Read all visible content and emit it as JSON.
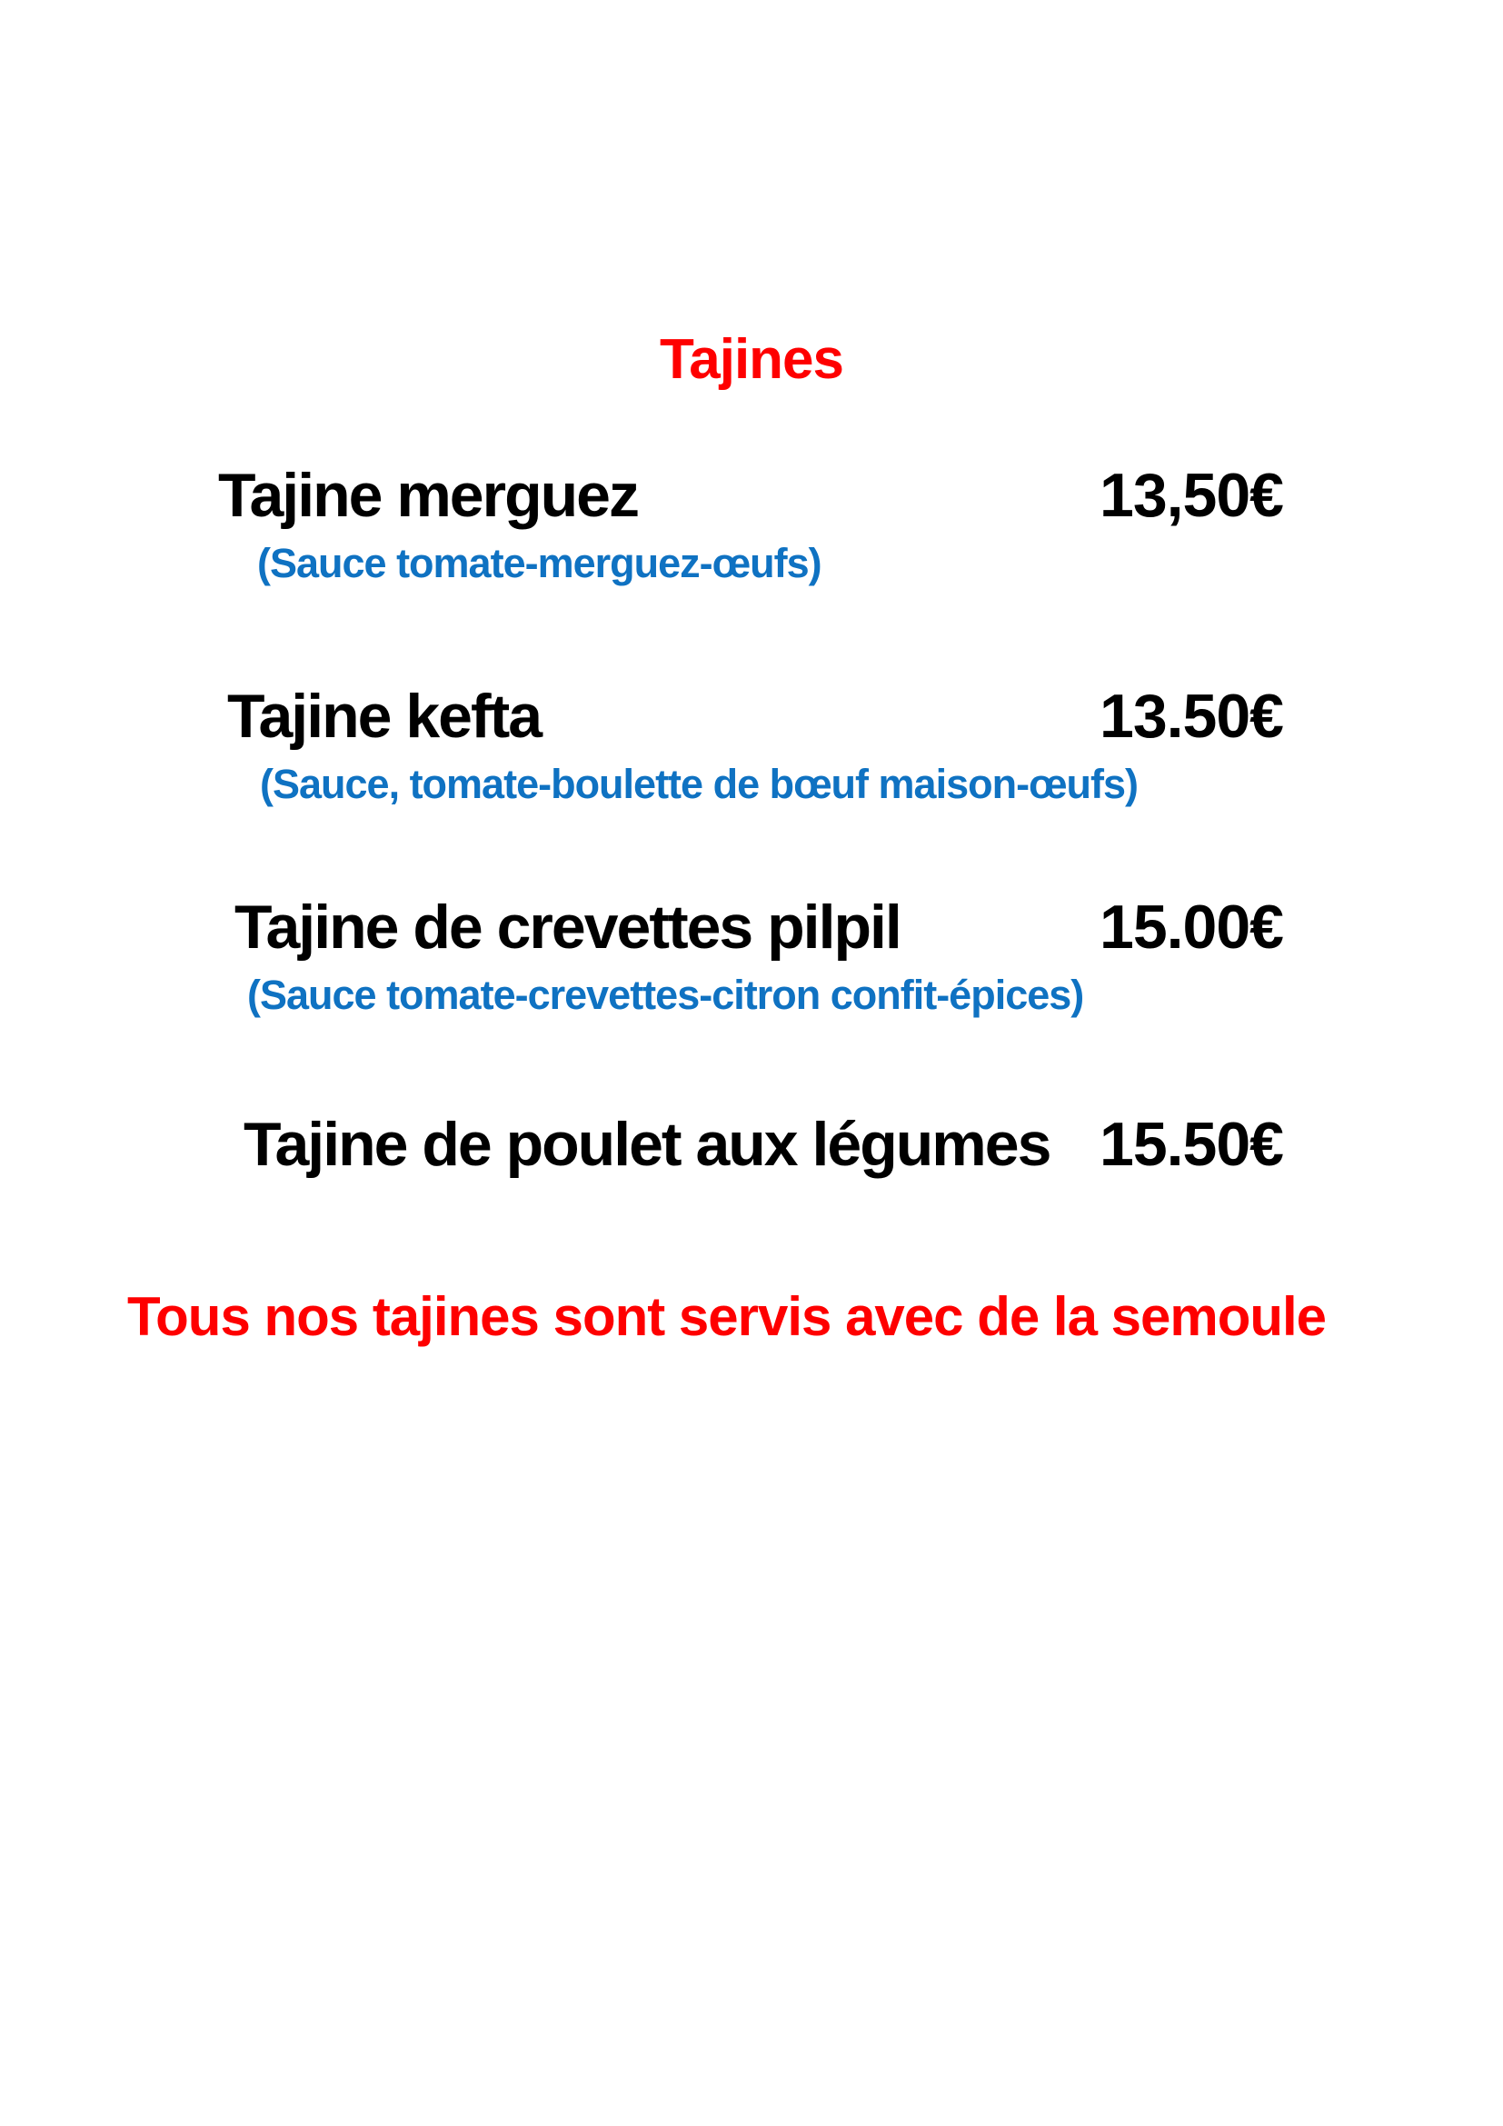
{
  "page": {
    "title": "Tajines",
    "footer_note": "Tous nos tajines sont servis avec de la semoule",
    "colors": {
      "title_red": "#fe0000",
      "sauce_blue": "#0f72c2",
      "item_black": "#000000",
      "background": "#ffffff"
    }
  },
  "menu": {
    "items": [
      {
        "name": "Tajine merguez",
        "price": "13,50€",
        "sauce": "(Sauce tomate-merguez-œufs)"
      },
      {
        "name": "Tajine kefta",
        "price": "13.50€",
        "sauce": "(Sauce, tomate-boulette de bœuf maison-œufs)"
      },
      {
        "name": "Tajine de crevettes pilpil",
        "price": "15.00€",
        "sauce": "(Sauce tomate-crevettes-citron confit-épices)"
      },
      {
        "name": "Tajine de poulet aux légumes",
        "price": "15.50€"
      }
    ]
  }
}
